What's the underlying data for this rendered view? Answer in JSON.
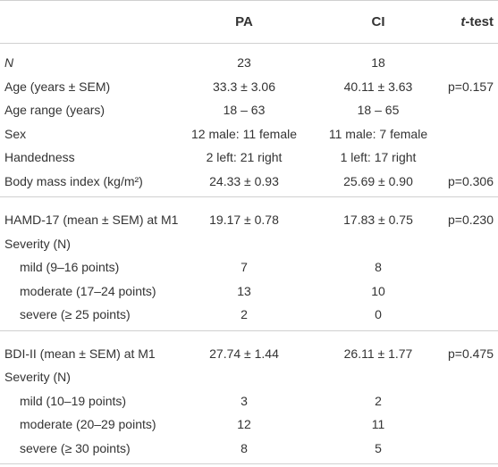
{
  "header": {
    "1": "PA",
    "2": "CI",
    "3": "t",
    "4": "-test"
  },
  "sections": [
    {
      "rows": [
        {
          "label": "N",
          "italic": true,
          "pa": "23",
          "ci": "18"
        },
        {
          "label": "Age (years ± SEM)",
          "pa": "33.3 ± 3.06",
          "ci": "40.11 ± 3.63",
          "t": "p=0.157"
        },
        {
          "label": "Age range (years)",
          "pa": "18 – 63",
          "ci": "18 – 65"
        },
        {
          "label": "Sex",
          "pa": "12 male: 11 female",
          "ci": "11 male: 7 female"
        },
        {
          "label": "Handedness",
          "pa": "2 left: 21 right",
          "ci": "1 left: 17 right"
        },
        {
          "label": "Body mass index (kg/m²)",
          "pa": "24.33 ± 0.93",
          "ci": "25.69 ± 0.90",
          "t": "p=0.306"
        }
      ]
    },
    {
      "rows": [
        {
          "label": "HAMD-17 (mean ± SEM) at M1",
          "pa": "19.17 ± 0.78",
          "ci": "17.83 ± 0.75",
          "t": "p=0.230"
        },
        {
          "label": "Severity (N)"
        },
        {
          "label": "mild (9–16 points)",
          "sub": true,
          "pa": "7",
          "ci": "8"
        },
        {
          "label": "moderate (17–24 points)",
          "sub": true,
          "pa": "13",
          "ci": "10"
        },
        {
          "label": "severe (≥ 25 points)",
          "sub": true,
          "pa": "2",
          "ci": "0"
        }
      ]
    },
    {
      "rows": [
        {
          "label": "BDI-II (mean ± SEM) at M1",
          "pa": "27.74 ± 1.44",
          "ci": "26.11 ± 1.77",
          "t": "p=0.475"
        },
        {
          "label": "Severity (N)"
        },
        {
          "label": "mild (10–19 points)",
          "sub": true,
          "pa": "3",
          "ci": "2"
        },
        {
          "label": "moderate (20–29 points)",
          "sub": true,
          "pa": "12",
          "ci": "11"
        },
        {
          "label": "severe (≥ 30 points)",
          "sub": true,
          "pa": "8",
          "ci": "5"
        }
      ]
    }
  ]
}
